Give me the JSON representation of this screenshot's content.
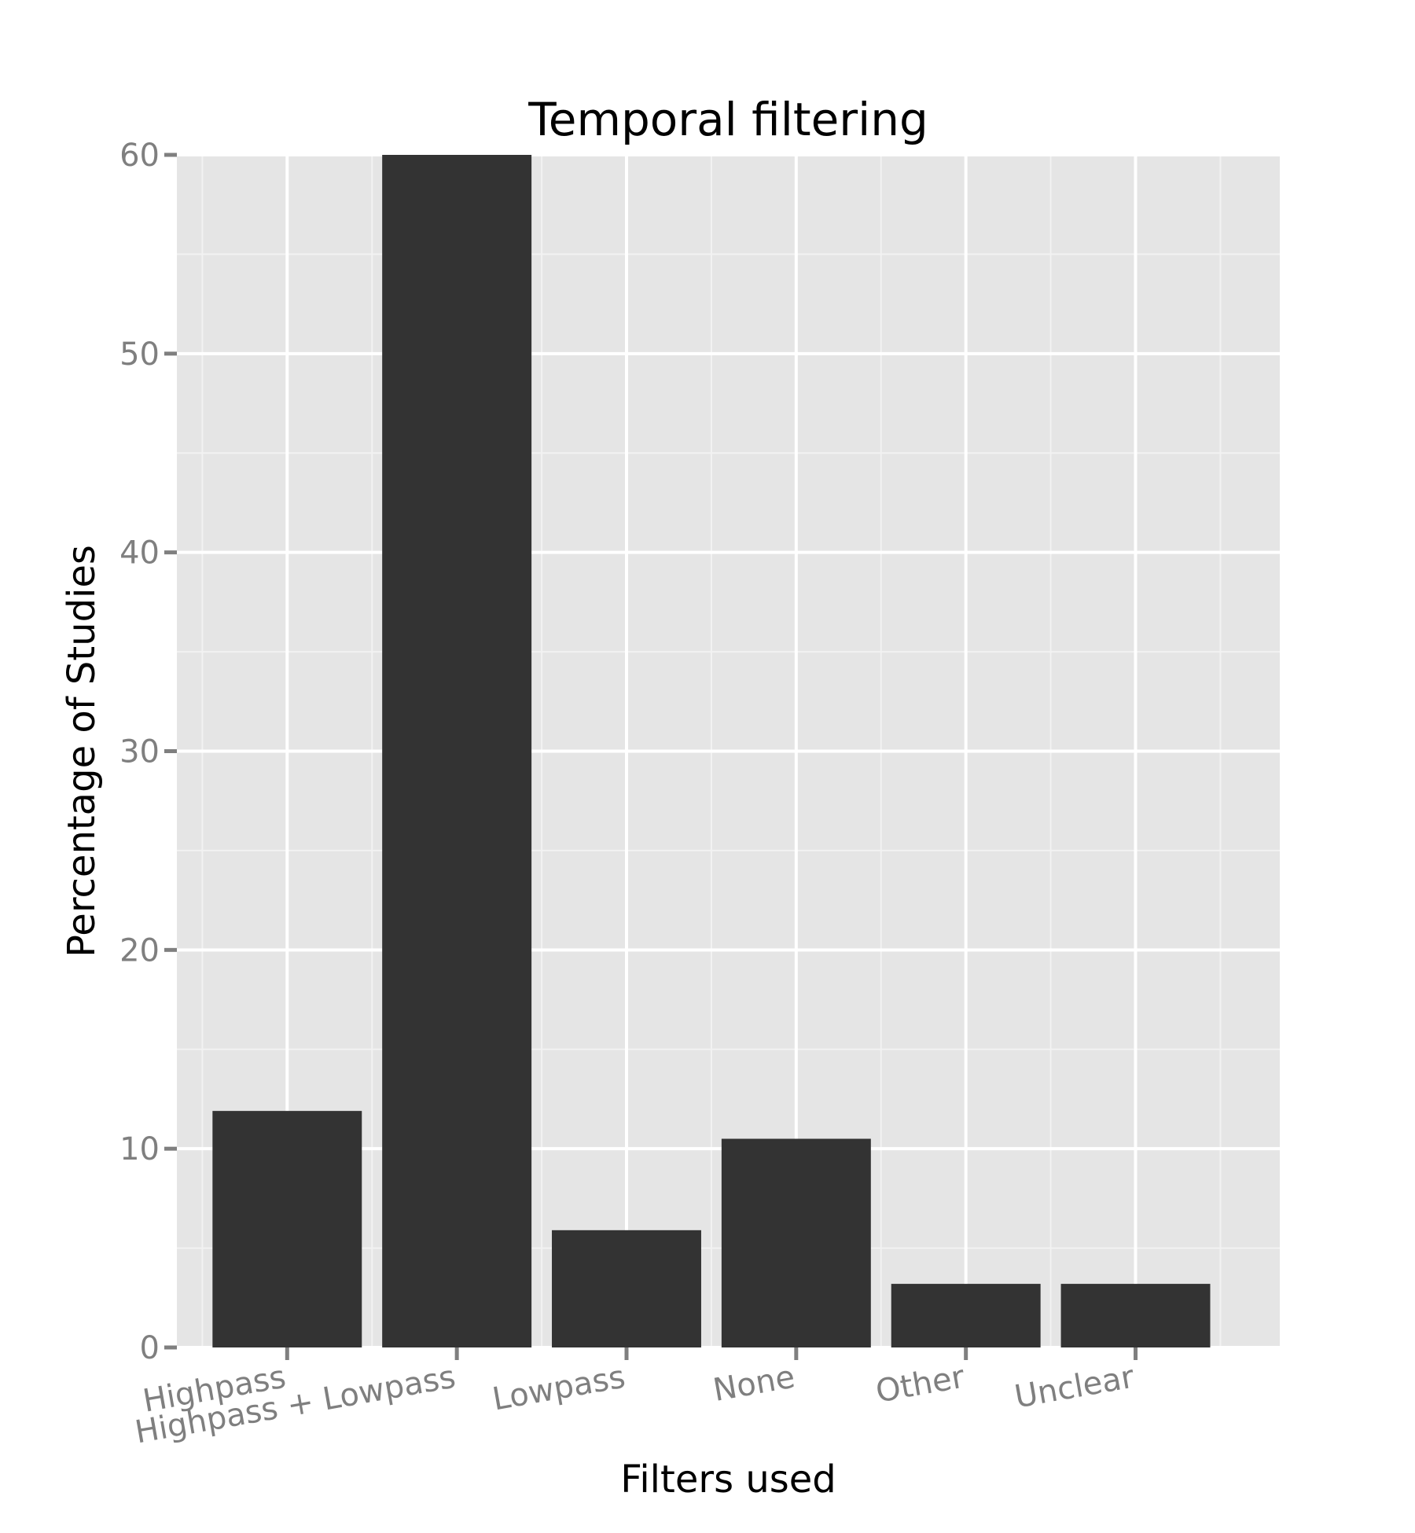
{
  "chart_data": {
    "type": "bar",
    "title": "Temporal filtering",
    "xlabel": "Filters used",
    "ylabel": "Percentage of Studies",
    "categories": [
      "Highpass",
      "Highpass + Lowpass",
      "Lowpass",
      "None",
      "Other",
      "Unclear"
    ],
    "values": [
      11.9,
      60.0,
      5.9,
      10.5,
      3.2,
      3.2
    ],
    "ylim": [
      0,
      60
    ],
    "yticks": [
      0,
      10,
      20,
      30,
      40,
      50,
      60
    ],
    "grid": true,
    "legend": "none",
    "colors": {
      "bar": "#333333",
      "panel": "#e5e5e5",
      "grid_major": "#ffffff",
      "grid_minor": "#f2f2f2",
      "tick": "#7f7f7f"
    }
  }
}
